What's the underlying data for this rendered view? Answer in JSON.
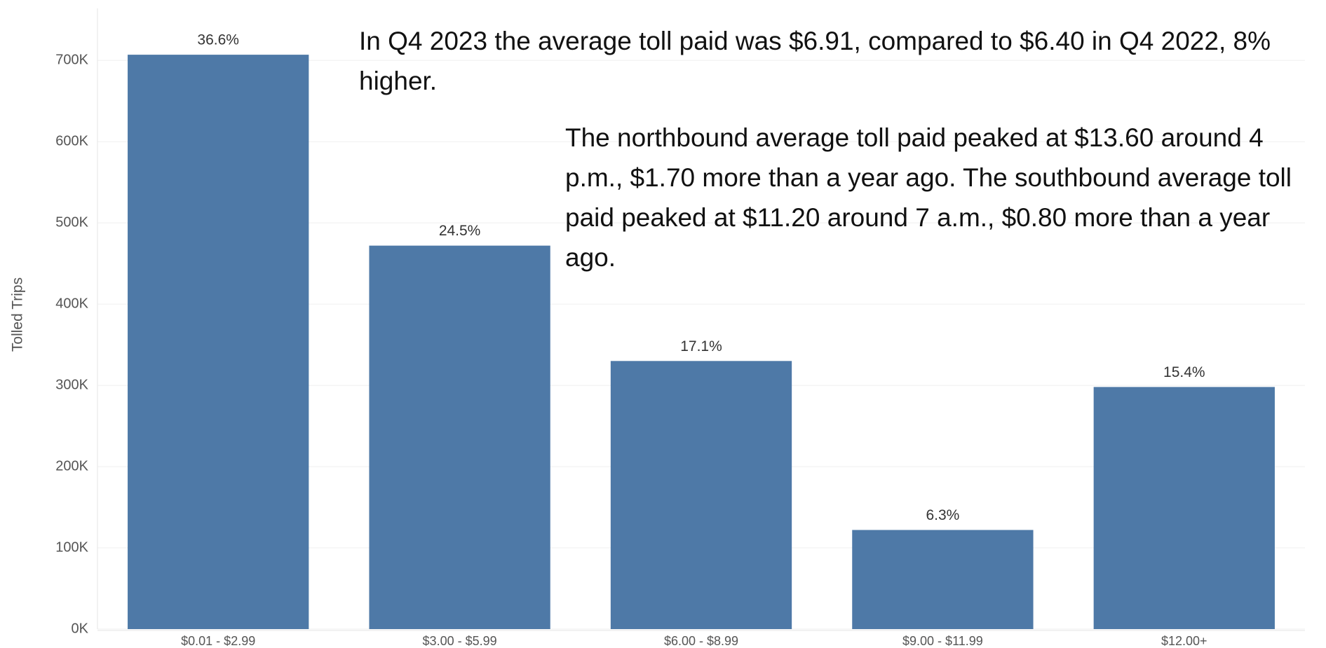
{
  "chart_data": {
    "type": "bar",
    "y_label": "Tolled Trips",
    "categories": [
      "$0.01 - $2.99",
      "$3.00 - $5.99",
      "$6.00 - $8.99",
      "$9.00 - $11.99",
      "$12.00+"
    ],
    "values": [
      707000,
      472000,
      330000,
      122000,
      298000
    ],
    "share_labels": [
      "36.6%",
      "24.5%",
      "17.1%",
      "6.3%",
      "15.4%"
    ],
    "color": "#4e79a7",
    "ylim": [
      0,
      764000
    ],
    "yticks": [
      {
        "value": 0,
        "label": "0K"
      },
      {
        "value": 100000,
        "label": "100K"
      },
      {
        "value": 200000,
        "label": "200K"
      },
      {
        "value": 300000,
        "label": "300K"
      },
      {
        "value": 400000,
        "label": "400K"
      },
      {
        "value": 500000,
        "label": "500K"
      },
      {
        "value": 600000,
        "label": "600K"
      },
      {
        "value": 700000,
        "label": "700K"
      }
    ],
    "grid": true,
    "annotations": [
      "In Q4 2023 the average toll paid was $6.91, compared to $6.40 in Q4 2022, 8% higher.",
      "The northbound average toll paid peaked at $13.60 around 4 p.m., $1.70 more than a year ago. The southbound average toll paid peaked at $11.20 around 7 a.m., $0.80 more than a year ago."
    ]
  }
}
